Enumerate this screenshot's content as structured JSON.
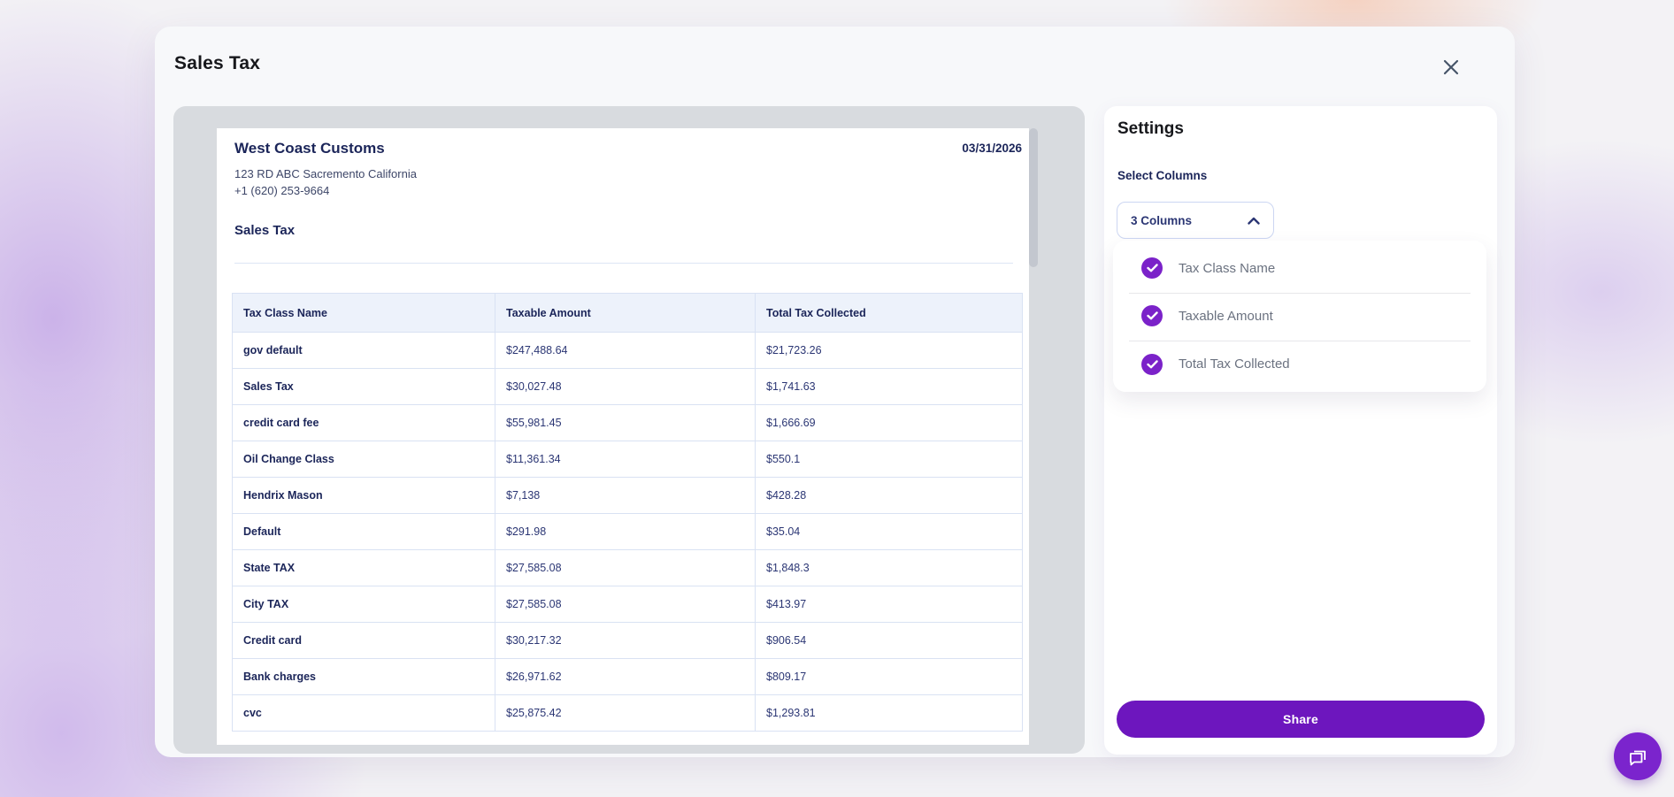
{
  "modal": {
    "title": "Sales Tax"
  },
  "report": {
    "company_name": "West Coast Customs",
    "address_line1": "123 RD ABC Sacremento California",
    "address_line2": "+1 (620) 253-9664",
    "date": "03/31/2026",
    "section_title": "Sales Tax",
    "table": {
      "columns": [
        "Tax Class Name",
        "Taxable Amount",
        "Total Tax Collected"
      ],
      "rows": [
        {
          "name": "gov default",
          "taxable": "$247,488.64",
          "collected": "$21,723.26"
        },
        {
          "name": "Sales Tax",
          "taxable": "$30,027.48",
          "collected": "$1,741.63"
        },
        {
          "name": "credit card fee",
          "taxable": "$55,981.45",
          "collected": "$1,666.69"
        },
        {
          "name": "Oil Change Class",
          "taxable": "$11,361.34",
          "collected": "$550.1"
        },
        {
          "name": "Hendrix Mason",
          "taxable": "$7,138",
          "collected": "$428.28"
        },
        {
          "name": "Default",
          "taxable": "$291.98",
          "collected": "$35.04"
        },
        {
          "name": "State TAX",
          "taxable": "$27,585.08",
          "collected": "$1,848.3"
        },
        {
          "name": "City TAX",
          "taxable": "$27,585.08",
          "collected": "$413.97"
        },
        {
          "name": "Credit card",
          "taxable": "$30,217.32",
          "collected": "$906.54"
        },
        {
          "name": "Bank charges",
          "taxable": "$26,971.62",
          "collected": "$809.17"
        },
        {
          "name": "cvc",
          "taxable": "$25,875.42",
          "collected": "$1,293.81"
        }
      ]
    }
  },
  "settings": {
    "title": "Settings",
    "select_columns_label": "Select Columns",
    "dropdown": {
      "value": "3 Columns",
      "expanded": true
    },
    "column_options": [
      {
        "label": "Tax Class Name",
        "checked": true
      },
      {
        "label": "Taxable Amount",
        "checked": true
      },
      {
        "label": "Total Tax Collected",
        "checked": true
      }
    ],
    "share_button_label": "Share"
  },
  "colors": {
    "accent_purple": "#7b22c9",
    "share_button": "#6d16be",
    "table_header_bg": "#edf2fb",
    "table_border": "#d9e2f3",
    "heading_navy": "#1b2559",
    "value_navy": "#2b3674",
    "option_text_gray": "#6b7280",
    "preview_bg": "#d8dbdf",
    "modal_bg": "#f7f8fa"
  }
}
